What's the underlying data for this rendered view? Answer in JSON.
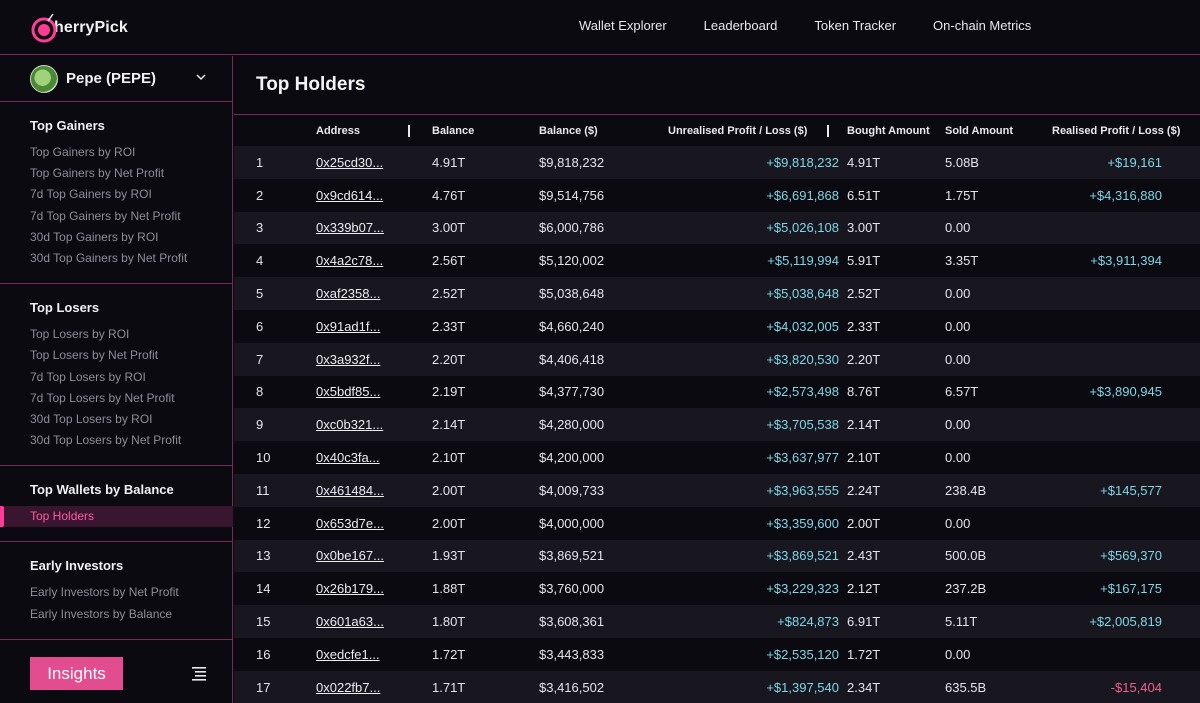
{
  "app": {
    "logo_text": "herryPick",
    "nav": [
      "Wallet Explorer",
      "Leaderboard",
      "Token Tracker",
      "On-chain Metrics"
    ]
  },
  "sidebar": {
    "token": "Pepe (PEPE)",
    "groups": [
      {
        "title": "Top Gainers",
        "items": [
          "Top Gainers by ROI",
          "Top Gainers by Net Profit",
          "7d Top Gainers by ROI",
          "7d Top Gainers by Net Profit",
          "30d Top Gainers by ROI",
          "30d Top Gainers by Net Profit"
        ]
      },
      {
        "title": "Top Losers",
        "items": [
          "Top Losers by ROI",
          "Top Losers by Net Profit",
          "7d Top Losers by ROI",
          "7d Top Losers by Net Profit",
          "30d Top Losers by ROI",
          "30d Top Losers by Net Profit"
        ]
      },
      {
        "title": "Top Wallets by Balance",
        "items": [
          "Top Holders"
        ]
      },
      {
        "title": "Early Investors",
        "items": [
          "Early Investors by Net Profit",
          "Early Investors by Balance"
        ]
      }
    ],
    "active_item": "Top Holders",
    "insights_label": "Insights"
  },
  "main": {
    "title": "Top Holders",
    "columns": [
      "Address",
      "Balance",
      "Balance ($)",
      "Unrealised Profit / Loss ($)",
      "Bought Amount",
      "Sold Amount",
      "Realised Profit / Loss ($)"
    ],
    "rows": [
      {
        "rank": "1",
        "address": "0x25cd30...",
        "balance": "4.91T",
        "balance_usd": "$9,818,232",
        "unrealised": "+$9,818,232",
        "bought": "4.91T",
        "sold": "5.08B",
        "realised": "+$19,161"
      },
      {
        "rank": "2",
        "address": "0x9cd614...",
        "balance": "4.76T",
        "balance_usd": "$9,514,756",
        "unrealised": "+$6,691,868",
        "bought": "6.51T",
        "sold": "1.75T",
        "realised": "+$4,316,880"
      },
      {
        "rank": "3",
        "address": "0x339b07...",
        "balance": "3.00T",
        "balance_usd": "$6,000,786",
        "unrealised": "+$5,026,108",
        "bought": "3.00T",
        "sold": "0.00",
        "realised": ""
      },
      {
        "rank": "4",
        "address": "0x4a2c78...",
        "balance": "2.56T",
        "balance_usd": "$5,120,002",
        "unrealised": "+$5,119,994",
        "bought": "5.91T",
        "sold": "3.35T",
        "realised": "+$3,911,394"
      },
      {
        "rank": "5",
        "address": "0xaf2358...",
        "balance": "2.52T",
        "balance_usd": "$5,038,648",
        "unrealised": "+$5,038,648",
        "bought": "2.52T",
        "sold": "0.00",
        "realised": ""
      },
      {
        "rank": "6",
        "address": "0x91ad1f...",
        "balance": "2.33T",
        "balance_usd": "$4,660,240",
        "unrealised": "+$4,032,005",
        "bought": "2.33T",
        "sold": "0.00",
        "realised": ""
      },
      {
        "rank": "7",
        "address": "0x3a932f...",
        "balance": "2.20T",
        "balance_usd": "$4,406,418",
        "unrealised": "+$3,820,530",
        "bought": "2.20T",
        "sold": "0.00",
        "realised": ""
      },
      {
        "rank": "8",
        "address": "0x5bdf85...",
        "balance": "2.19T",
        "balance_usd": "$4,377,730",
        "unrealised": "+$2,573,498",
        "bought": "8.76T",
        "sold": "6.57T",
        "realised": "+$3,890,945"
      },
      {
        "rank": "9",
        "address": "0xc0b321...",
        "balance": "2.14T",
        "balance_usd": "$4,280,000",
        "unrealised": "+$3,705,538",
        "bought": "2.14T",
        "sold": "0.00",
        "realised": ""
      },
      {
        "rank": "10",
        "address": "0x40c3fa...",
        "balance": "2.10T",
        "balance_usd": "$4,200,000",
        "unrealised": "+$3,637,977",
        "bought": "2.10T",
        "sold": "0.00",
        "realised": ""
      },
      {
        "rank": "11",
        "address": "0x461484...",
        "balance": "2.00T",
        "balance_usd": "$4,009,733",
        "unrealised": "+$3,963,555",
        "bought": "2.24T",
        "sold": "238.4B",
        "realised": "+$145,577"
      },
      {
        "rank": "12",
        "address": "0x653d7e...",
        "balance": "2.00T",
        "balance_usd": "$4,000,000",
        "unrealised": "+$3,359,600",
        "bought": "2.00T",
        "sold": "0.00",
        "realised": ""
      },
      {
        "rank": "13",
        "address": "0x0be167...",
        "balance": "1.93T",
        "balance_usd": "$3,869,521",
        "unrealised": "+$3,869,521",
        "bought": "2.43T",
        "sold": "500.0B",
        "realised": "+$569,370"
      },
      {
        "rank": "14",
        "address": "0x26b179...",
        "balance": "1.88T",
        "balance_usd": "$3,760,000",
        "unrealised": "+$3,229,323",
        "bought": "2.12T",
        "sold": "237.2B",
        "realised": "+$167,175"
      },
      {
        "rank": "15",
        "address": "0x601a63...",
        "balance": "1.80T",
        "balance_usd": "$3,608,361",
        "unrealised": "+$824,873",
        "bought": "6.91T",
        "sold": "5.11T",
        "realised": "+$2,005,819"
      },
      {
        "rank": "16",
        "address": "0xedcfe1...",
        "balance": "1.72T",
        "balance_usd": "$3,443,833",
        "unrealised": "+$2,535,120",
        "bought": "1.72T",
        "sold": "0.00",
        "realised": ""
      },
      {
        "rank": "17",
        "address": "0x022fb7...",
        "balance": "1.71T",
        "balance_usd": "$3,416,502",
        "unrealised": "+$1,397,540",
        "bought": "2.34T",
        "sold": "635.5B",
        "realised": "-$15,404"
      }
    ]
  },
  "colors": {
    "accent": "#e24d8f",
    "divider": "#7a2a57",
    "positive": "#7fd6e6",
    "negative": "#f0608f",
    "background": "#0b0a10"
  }
}
